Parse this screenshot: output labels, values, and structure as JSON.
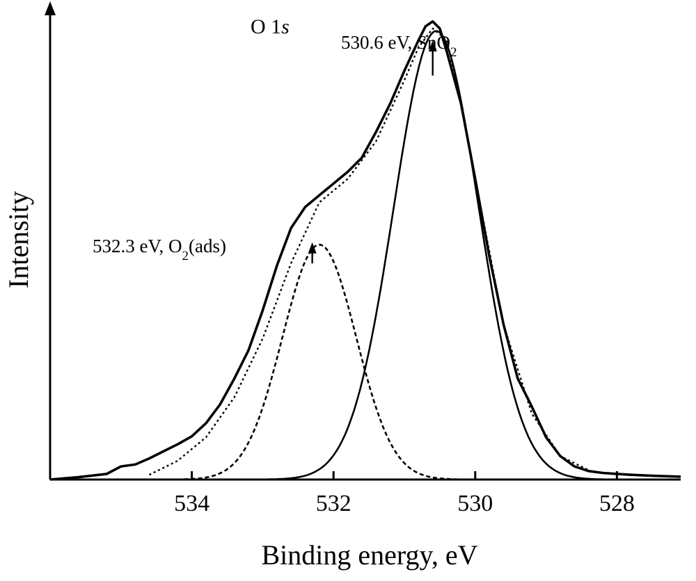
{
  "chart_data": {
    "type": "line",
    "title": "O 1s",
    "title_main": "O 1",
    "title_italic": "s",
    "xlabel": "Binding energy, eV",
    "ylabel": "Intensity",
    "x_reversed": true,
    "xlim": [
      536.0,
      527.1
    ],
    "ylim": [
      0,
      1.0
    ],
    "x_ticks": [
      534,
      532,
      530,
      528
    ],
    "y_ticks_labeled": false,
    "grid": false,
    "legend": "none",
    "series": [
      {
        "style": "solid-thick",
        "x": [
          536.0,
          535.6,
          535.2,
          535.0,
          534.8,
          534.6,
          534.4,
          534.2,
          534.0,
          533.8,
          533.6,
          533.4,
          533.2,
          533.0,
          532.8,
          532.6,
          532.4,
          532.2,
          532.0,
          531.8,
          531.6,
          531.4,
          531.2,
          531.0,
          530.8,
          530.7,
          530.6,
          530.5,
          530.4,
          530.2,
          530.0,
          529.8,
          529.6,
          529.4,
          529.2,
          529.0,
          528.8,
          528.6,
          528.4,
          528.2,
          528.0,
          527.8,
          527.5,
          527.1
        ],
        "y": [
          0.0,
          0.005,
          0.012,
          0.028,
          0.032,
          0.045,
          0.06,
          0.075,
          0.092,
          0.12,
          0.16,
          0.215,
          0.275,
          0.36,
          0.455,
          0.535,
          0.58,
          0.605,
          0.63,
          0.655,
          0.685,
          0.74,
          0.8,
          0.87,
          0.935,
          0.965,
          0.975,
          0.96,
          0.91,
          0.8,
          0.64,
          0.475,
          0.33,
          0.215,
          0.155,
          0.09,
          0.05,
          0.028,
          0.018,
          0.014,
          0.012,
          0.01,
          0.008,
          0.006
        ]
      },
      {
        "style": "dotted",
        "x": [
          534.6,
          534.2,
          533.8,
          533.4,
          533.0,
          532.6,
          532.2,
          531.8,
          531.4,
          531.0,
          530.8,
          530.6,
          530.4,
          530.2,
          530.0,
          529.6,
          529.2,
          528.8,
          528.4
        ],
        "y": [
          0.01,
          0.04,
          0.09,
          0.175,
          0.3,
          0.46,
          0.59,
          0.64,
          0.72,
          0.85,
          0.92,
          0.96,
          0.935,
          0.8,
          0.64,
          0.33,
          0.14,
          0.05,
          0.02
        ]
      },
      {
        "style": "dashed",
        "name_peak": "532.3 eV, O2(ads)",
        "gaussian": {
          "center": 532.2,
          "sigma": 0.52,
          "amplitude": 0.5
        },
        "x_range": [
          534.6,
          530.0
        ]
      },
      {
        "style": "solid",
        "name_peak": "530.6 eV, SnO2",
        "gaussian": {
          "center": 530.55,
          "sigma": 0.6,
          "amplitude": 0.955
        },
        "x_range": [
          533.0,
          528.0
        ]
      }
    ],
    "annotations": [
      {
        "text_main": "532.3 eV, O",
        "text_sub": "2",
        "text_tail": "(ads)",
        "arrow_x": 532.3,
        "arrow_from": 0.46,
        "arrow_to": 0.505
      },
      {
        "text_main": "530.6 eV, SnO",
        "text_sub": "2",
        "text_tail": "",
        "arrow_x": 530.6,
        "arrow_from": 0.86,
        "arrow_to": 0.935
      }
    ]
  }
}
